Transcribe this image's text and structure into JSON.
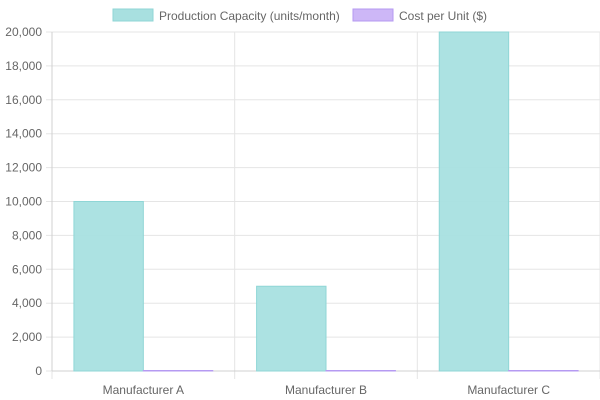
{
  "chart_data": {
    "type": "bar",
    "categories": [
      "Manufacturer A",
      "Manufacturer B",
      "Manufacturer C"
    ],
    "series": [
      {
        "name": "Production Capacity (units/month)",
        "values": [
          10000,
          5000,
          20000
        ],
        "color": "#a8e0e0",
        "border": "#8fd6d6"
      },
      {
        "name": "Cost per Unit ($)",
        "values": [
          15,
          12,
          18
        ],
        "color": "#cdb7f7",
        "border": "#b59af2"
      }
    ],
    "ylim": [
      0,
      20000
    ],
    "yticks": [
      "0",
      "2,000",
      "4,000",
      "6,000",
      "8,000",
      "10,000",
      "12,000",
      "14,000",
      "16,000",
      "18,000",
      "20,000"
    ],
    "ytick_values": [
      0,
      2000,
      4000,
      6000,
      8000,
      10000,
      12000,
      14000,
      16000,
      18000,
      20000
    ],
    "grid": true,
    "legend": "top"
  }
}
